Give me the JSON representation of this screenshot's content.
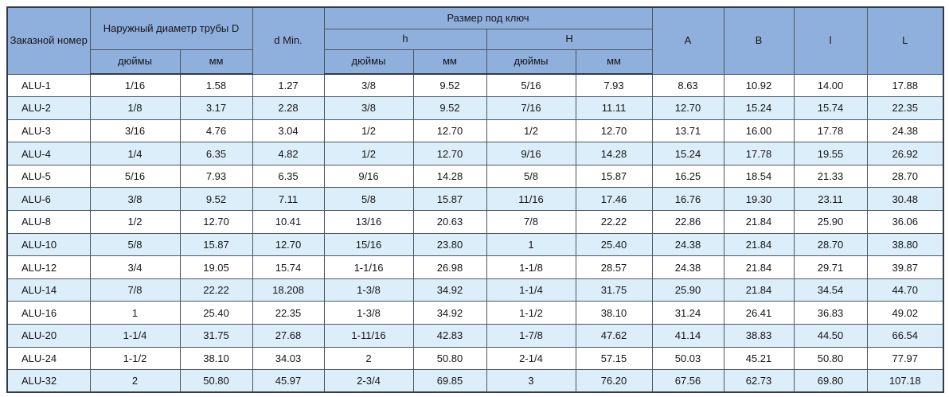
{
  "table": {
    "headers": {
      "order_number": "Заказной номер",
      "outer_diameter": "Наружный диаметр трубы D",
      "d_min": "d Min.",
      "wrench_size": "Размер под ключ",
      "h_lower": "h",
      "h_upper": "H",
      "inches": "дюймы",
      "mm": "мм",
      "col_a": "A",
      "col_b": "B",
      "col_l_lower": "l",
      "col_l_upper": "L"
    },
    "rows": [
      [
        "ALU-1",
        "1/16",
        "1.58",
        "1.27",
        "3/8",
        "9.52",
        "5/16",
        "7.93",
        "8.63",
        "10.92",
        "14.00",
        "17.88"
      ],
      [
        "ALU-2",
        "1/8",
        "3.17",
        "2.28",
        "3/8",
        "9.52",
        "7/16",
        "11.11",
        "12.70",
        "15.24",
        "15.74",
        "22.35"
      ],
      [
        "ALU-3",
        "3/16",
        "4.76",
        "3.04",
        "1/2",
        "12.70",
        "1/2",
        "12.70",
        "13.71",
        "16.00",
        "17.78",
        "24.38"
      ],
      [
        "ALU-4",
        "1/4",
        "6.35",
        "4.82",
        "1/2",
        "12.70",
        "9/16",
        "14.28",
        "15.24",
        "17.78",
        "19.55",
        "26.92"
      ],
      [
        "ALU-5",
        "5/16",
        "7.93",
        "6.35",
        "9/16",
        "14.28",
        "5/8",
        "15.87",
        "16.25",
        "18.54",
        "21.33",
        "28.70"
      ],
      [
        "ALU-6",
        "3/8",
        "9.52",
        "7.11",
        "5/8",
        "15.87",
        "11/16",
        "17.46",
        "16.76",
        "19.30",
        "23.11",
        "30.48"
      ],
      [
        "ALU-8",
        "1/2",
        "12.70",
        "10.41",
        "13/16",
        "20.63",
        "7/8",
        "22.22",
        "22.86",
        "21.84",
        "25.90",
        "36.06"
      ],
      [
        "ALU-10",
        "5/8",
        "15.87",
        "12.70",
        "15/16",
        "23.80",
        "1",
        "25.40",
        "24.38",
        "21.84",
        "28.70",
        "38.80"
      ],
      [
        "ALU-12",
        "3/4",
        "19.05",
        "15.74",
        "1-1/16",
        "26.98",
        "1-1/8",
        "28.57",
        "24.38",
        "21.84",
        "29.71",
        "39.87"
      ],
      [
        "ALU-14",
        "7/8",
        "22.22",
        "18.208",
        "1-3/8",
        "34.92",
        "1-1/4",
        "31.75",
        "25.90",
        "21.84",
        "34.54",
        "44.70"
      ],
      [
        "ALU-16",
        "1",
        "25.40",
        "22.35",
        "1-3/8",
        "34.92",
        "1-1/2",
        "38.10",
        "31.24",
        "26.41",
        "36.83",
        "49.02"
      ],
      [
        "ALU-20",
        "1-1/4",
        "31.75",
        "27.68",
        "1-11/16",
        "42.83",
        "1-7/8",
        "47.62",
        "41.14",
        "38.83",
        "44.50",
        "66.54"
      ],
      [
        "ALU-24",
        "1-1/2",
        "38.10",
        "34.03",
        "2",
        "50.80",
        "2-1/4",
        "57.15",
        "50.03",
        "45.21",
        "50.80",
        "77.97"
      ],
      [
        "ALU-32",
        "2",
        "50.80",
        "45.97",
        "2-3/4",
        "69.85",
        "3",
        "76.20",
        "67.56",
        "62.73",
        "69.80",
        "107.18"
      ]
    ]
  },
  "colors": {
    "header_fill": "#8fafdc",
    "stripe_fill": "#dceefa",
    "row_fill": "#ffffff",
    "border_outer": "#323c46",
    "border_inner": "#4d5761",
    "text": "#161616"
  }
}
